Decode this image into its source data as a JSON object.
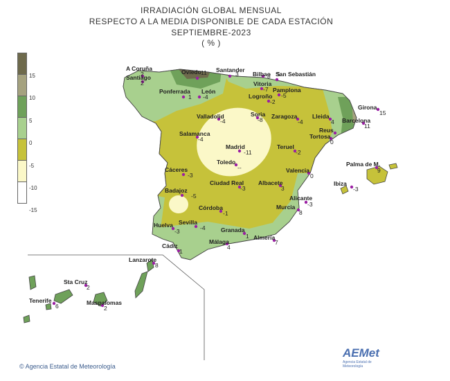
{
  "title": {
    "line1": "IRRADIACIÓN  GLOBAL  MENSUAL",
    "line2": "RESPECTO  A  LA  MEDIA  DISPONIBLE  DE  CADA  ESTACIÓN",
    "line3": "SEPTIEMBRE-2023",
    "line4": "( % )"
  },
  "legend": {
    "labels": [
      "15",
      "10",
      "5",
      "0",
      "-5",
      "-10",
      "-15"
    ],
    "colors": [
      "#6e6a4c",
      "#a5a27f",
      "#6fa15a",
      "#a8d08e",
      "#c6c23a",
      "#fbf8c8",
      "#ffffff"
    ]
  },
  "stations": [
    {
      "name": "A Coruña",
      "value": "2"
    },
    {
      "name": "Santiago",
      "value": "2"
    },
    {
      "name": "Oviedo",
      "value": "11"
    },
    {
      "name": "Santander",
      "value": "3"
    },
    {
      "name": "Bilbao",
      "value": "8"
    },
    {
      "name": "San Sebastián",
      "value": "5"
    },
    {
      "name": "Ponferrada",
      "value": "1"
    },
    {
      "name": "León",
      "value": "-4"
    },
    {
      "name": "Vitoria",
      "value": "-7"
    },
    {
      "name": "Pamplona",
      "value": "-5"
    },
    {
      "name": "Logroño",
      "value": "-2"
    },
    {
      "name": "Valladolid",
      "value": "-4"
    },
    {
      "name": "Soria",
      "value": "-8"
    },
    {
      "name": "Zaragoza",
      "value": "-4"
    },
    {
      "name": "Lleida",
      "value": "4"
    },
    {
      "name": "Girona",
      "value": "15"
    },
    {
      "name": "Barcelona",
      "value": "11"
    },
    {
      "name": "Reus",
      "value": ""
    },
    {
      "name": "Tortosa",
      "value": "0"
    },
    {
      "name": "Salamanca",
      "value": "-4"
    },
    {
      "name": "Madrid",
      "value": "-11"
    },
    {
      "name": "Teruel",
      "value": "-2"
    },
    {
      "name": "Toledo",
      "value": "--"
    },
    {
      "name": "Palma de M.",
      "value": "9"
    },
    {
      "name": "Cáceres",
      "value": "-3"
    },
    {
      "name": "Valencia",
      "value": "0"
    },
    {
      "name": "Ciudad Real",
      "value": "-3"
    },
    {
      "name": "Albacete",
      "value": "3"
    },
    {
      "name": "Ibiza",
      "value": "-3"
    },
    {
      "name": "Badajoz",
      "value": "-5"
    },
    {
      "name": "Alicante",
      "value": "-3"
    },
    {
      "name": "Córdoba",
      "value": "-1"
    },
    {
      "name": "Murcia",
      "value": "8"
    },
    {
      "name": "Huelva",
      "value": "-3"
    },
    {
      "name": "Sevilla",
      "value": "-4"
    },
    {
      "name": "Granada",
      "value": "1"
    },
    {
      "name": "Almería",
      "value": "7"
    },
    {
      "name": "Málaga",
      "value": "4"
    },
    {
      "name": "Cádiz",
      "value": "1"
    },
    {
      "name": "Lanzarote",
      "value": "8"
    },
    {
      "name": "Sta Cruz",
      "value": "2"
    },
    {
      "name": "Tenerife",
      "value": "6"
    },
    {
      "name": "Maspalomas",
      "value": "2"
    }
  ],
  "footer": {
    "agency": "Agencia Estatal de Meteorología",
    "logo": "AEMet",
    "logo_sub": "Agencia Estatal de Meteorología"
  }
}
